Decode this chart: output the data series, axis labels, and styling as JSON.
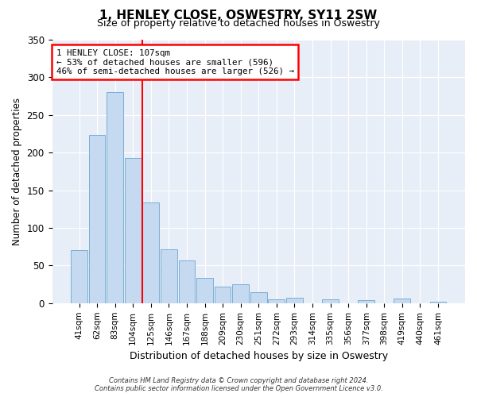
{
  "title": "1, HENLEY CLOSE, OSWESTRY, SY11 2SW",
  "subtitle": "Size of property relative to detached houses in Oswestry",
  "xlabel": "Distribution of detached houses by size in Oswestry",
  "ylabel": "Number of detached properties",
  "bar_labels": [
    "41sqm",
    "62sqm",
    "83sqm",
    "104sqm",
    "125sqm",
    "146sqm",
    "167sqm",
    "188sqm",
    "209sqm",
    "230sqm",
    "251sqm",
    "272sqm",
    "293sqm",
    "314sqm",
    "335sqm",
    "356sqm",
    "377sqm",
    "398sqm",
    "419sqm",
    "440sqm",
    "461sqm"
  ],
  "bar_values": [
    70,
    223,
    280,
    193,
    134,
    72,
    57,
    34,
    22,
    25,
    15,
    5,
    7,
    0,
    5,
    0,
    4,
    0,
    6,
    0,
    2
  ],
  "bar_color": "#c5d9f1",
  "bar_edge_color": "#7bafd4",
  "vline_color": "red",
  "annotation_text": "1 HENLEY CLOSE: 107sqm\n← 53% of detached houses are smaller (596)\n46% of semi-detached houses are larger (526) →",
  "annotation_box_edgecolor": "red",
  "ylim": [
    0,
    350
  ],
  "yticks": [
    0,
    50,
    100,
    150,
    200,
    250,
    300,
    350
  ],
  "footer_line1": "Contains HM Land Registry data © Crown copyright and database right 2024.",
  "footer_line2": "Contains public sector information licensed under the Open Government Licence v3.0.",
  "bg_color": "#ffffff",
  "plot_bg_color": "#e8eef7"
}
